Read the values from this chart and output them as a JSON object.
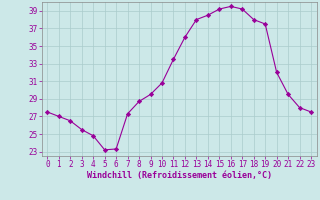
{
  "hours": [
    0,
    1,
    2,
    3,
    4,
    5,
    6,
    7,
    8,
    9,
    10,
    11,
    12,
    13,
    14,
    15,
    16,
    17,
    18,
    19,
    20,
    21,
    22,
    23
  ],
  "values": [
    27.5,
    27.0,
    26.5,
    25.5,
    24.8,
    23.2,
    23.3,
    27.3,
    28.7,
    29.5,
    30.8,
    33.5,
    36.0,
    38.0,
    38.5,
    39.2,
    39.5,
    39.2,
    38.0,
    37.5,
    32.0,
    29.5,
    28.0,
    27.5
  ],
  "line_color": "#990099",
  "marker": "D",
  "marker_size": 2.2,
  "bg_color": "#cce8e8",
  "grid_color": "#aacccc",
  "ylabel_ticks": [
    23,
    25,
    27,
    29,
    31,
    33,
    35,
    37,
    39
  ],
  "xlim": [
    -0.5,
    23.5
  ],
  "ylim": [
    22.5,
    40.0
  ],
  "xlabel": "Windchill (Refroidissement éolien,°C)",
  "tick_label_color": "#990099",
  "axis_color": "#888888",
  "font_size": 5.5,
  "xlabel_fontsize": 6.0
}
